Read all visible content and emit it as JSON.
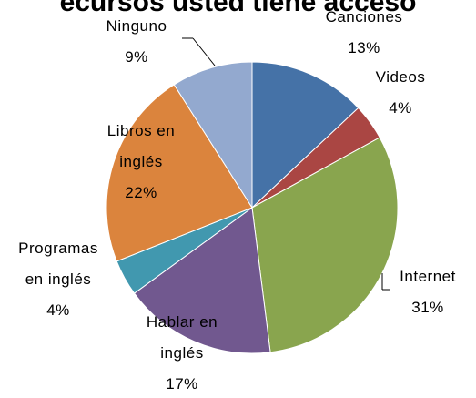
{
  "chart_data": {
    "type": "pie",
    "title": "ecursos usted tiene acceso",
    "categories": [
      "Canciones",
      "Videos",
      "Internet",
      "Hablar en inglés",
      "Programas en inglés",
      "Libros en inglés",
      "Ninguno"
    ],
    "values": [
      13,
      4,
      31,
      17,
      4,
      22,
      9
    ],
    "value_labels": [
      "13%",
      "4%",
      "31%",
      "17%",
      "4%",
      "22%",
      "9%"
    ],
    "colors": [
      "#4572A7",
      "#AA4643",
      "#89A54E",
      "#71588F",
      "#4198AF",
      "#DB843D",
      "#93A9CF"
    ]
  }
}
